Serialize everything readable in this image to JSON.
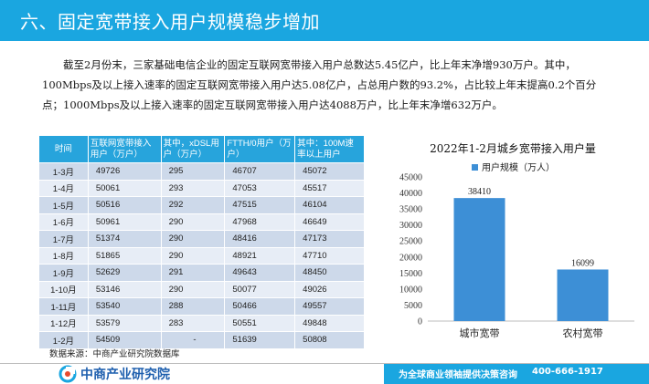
{
  "header": {
    "title": "六、固定宽带接入用户规模稳步增加"
  },
  "paragraph": "截至2月份末，三家基础电信企业的固定互联网宽带接入用户总数达5.45亿户，比上年末净增930万户。其中，100Mbps及以上接入速率的固定互联网宽带接入用户达5.08亿户，占总用户数的93.2%，占比较上年末提高0.2个百分点；1000Mbps及以上接入速率的固定互联网宽带接入用户达4088万户，比上年末净增632万户。",
  "table": {
    "headers": [
      "时间",
      "互联网宽带接入用户（万户）",
      "其中，xDSL用户（万户）",
      "FTTH/0用户（万户）",
      "其中：100M速率以上用户"
    ],
    "rows": [
      [
        "1-3月",
        "49726",
        "295",
        "46707",
        "45072"
      ],
      [
        "1-4月",
        "50061",
        "293",
        "47053",
        "45517"
      ],
      [
        "1-5月",
        "50516",
        "292",
        "47515",
        "46104"
      ],
      [
        "1-6月",
        "50961",
        "290",
        "47968",
        "46649"
      ],
      [
        "1-7月",
        "51374",
        "290",
        "48416",
        "47173"
      ],
      [
        "1-8月",
        "51865",
        "290",
        "48921",
        "47710"
      ],
      [
        "1-9月",
        "52629",
        "291",
        "49643",
        "48450"
      ],
      [
        "1-10月",
        "53146",
        "290",
        "50077",
        "49026"
      ],
      [
        "1-11月",
        "53540",
        "288",
        "50466",
        "49557"
      ],
      [
        "1-12月",
        "53579",
        "283",
        "50551",
        "49848"
      ],
      [
        "1-2月",
        "54509",
        "-",
        "51639",
        "50808"
      ]
    ]
  },
  "source": "数据来源：中商产业研究院数据库",
  "chart_data": {
    "type": "bar",
    "title": "2022年1-2月城乡宽带接入用户量",
    "categories": [
      "城市宽带",
      "农村宽带"
    ],
    "series": [
      {
        "name": "用户规模（万人）",
        "values": [
          38410,
          16099
        ]
      }
    ],
    "ylim": [
      0,
      45000
    ],
    "yticks": [
      0,
      5000,
      10000,
      15000,
      20000,
      25000,
      30000,
      35000,
      40000,
      45000
    ],
    "legend": "top-left",
    "grid": false,
    "bar_color": "#3d8fd6"
  },
  "footer": {
    "logo_text": "中商产业研究院",
    "slogan": "为全球商业领袖提供决策咨询",
    "phone": "400-666-1917"
  }
}
